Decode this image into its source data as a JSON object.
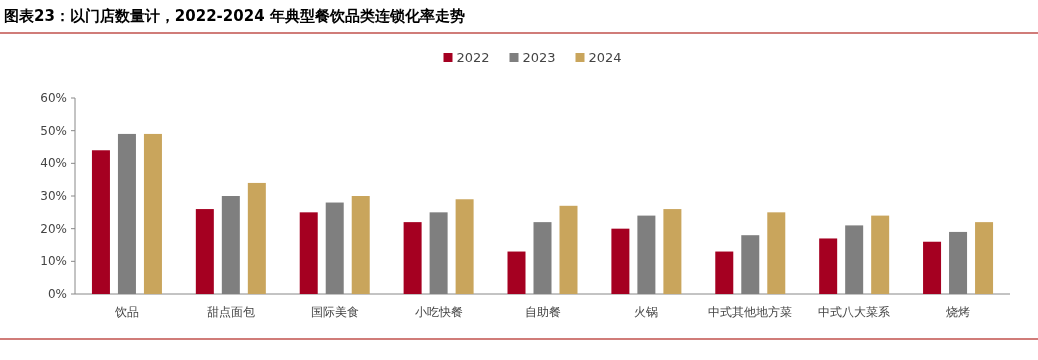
{
  "chart_data": {
    "type": "bar",
    "title": "图表23：以门店数量计，2022-2024 年典型餐饮品类连锁化率走势",
    "categories": [
      "饮品",
      "甜点面包",
      "国际美食",
      "小吃快餐",
      "自助餐",
      "火锅",
      "中式其他地方菜",
      "中式八大菜系",
      "烧烤"
    ],
    "series": [
      {
        "name": "2022",
        "color": "#a50021",
        "values": [
          44,
          26,
          25,
          22,
          13,
          20,
          13,
          17,
          16
        ]
      },
      {
        "name": "2023",
        "color": "#7f7f7f",
        "values": [
          49,
          30,
          28,
          25,
          22,
          24,
          18,
          21,
          19
        ]
      },
      {
        "name": "2024",
        "color": "#c9a55c",
        "values": [
          49,
          34,
          30,
          29,
          27,
          26,
          25,
          24,
          22
        ]
      }
    ],
    "ylim": [
      0,
      60
    ],
    "yticks": [
      {
        "value": 0,
        "label": "0%"
      },
      {
        "value": 10,
        "label": "10%"
      },
      {
        "value": 20,
        "label": "20%"
      },
      {
        "value": 30,
        "label": "30%"
      },
      {
        "value": 40,
        "label": "40%"
      },
      {
        "value": 50,
        "label": "50%"
      },
      {
        "value": 60,
        "label": "60%"
      }
    ],
    "legend": "top"
  }
}
